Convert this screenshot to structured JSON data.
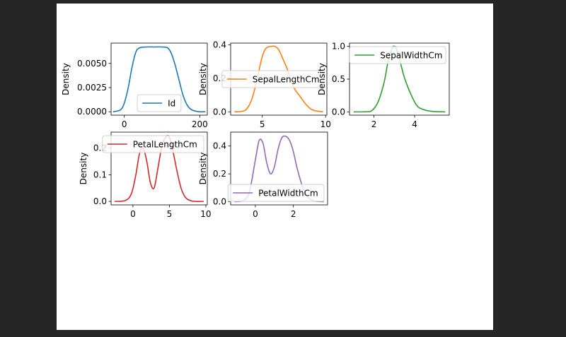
{
  "chart_data": [
    {
      "type": "line",
      "ylabel": "Density",
      "xlim": [
        -35,
        220
      ],
      "ylim": [
        -0.00035,
        0.0071
      ],
      "xticks": [
        {
          "value": 0,
          "label": "0"
        },
        {
          "value": 200,
          "label": "200"
        }
      ],
      "yticks": [
        {
          "value": 0,
          "label": "0.0000"
        },
        {
          "value": 0.0025,
          "label": "0.0025"
        },
        {
          "value": 0.005,
          "label": "0.0050"
        }
      ],
      "legend_loc": "lower-center",
      "series": [
        {
          "name": "Id",
          "color": "#1f77b4",
          "x": [
            -30,
            -10,
            0,
            10,
            20,
            30,
            40,
            60,
            80,
            100,
            115,
            125,
            135,
            145,
            155,
            165,
            175,
            185,
            200,
            215
          ],
          "y": [
            0.0,
            0.0002,
            0.0009,
            0.0024,
            0.0045,
            0.0061,
            0.0066,
            0.0067,
            0.0067,
            0.0067,
            0.0066,
            0.006,
            0.0048,
            0.0033,
            0.0018,
            0.0008,
            0.0003,
            0.0001,
            0.0,
            0.0
          ]
        }
      ]
    },
    {
      "type": "line",
      "ylabel": "Density",
      "xlim": [
        2.5,
        10.1
      ],
      "ylim": [
        -0.02,
        0.41
      ],
      "xticks": [
        {
          "value": 5,
          "label": "5"
        },
        {
          "value": 10,
          "label": "10"
        }
      ],
      "yticks": [
        {
          "value": 0,
          "label": "0.0"
        },
        {
          "value": 0.2,
          "label": "0.2"
        },
        {
          "value": 0.4,
          "label": "0.4"
        }
      ],
      "legend_loc": "center-right",
      "series": [
        {
          "name": "SepalLengthCm",
          "color": "#ff7f0e",
          "x": [
            2.8,
            3.4,
            3.8,
            4.2,
            4.6,
            5.0,
            5.3,
            5.7,
            6.0,
            6.3,
            6.6,
            7.0,
            7.3,
            7.6,
            8.0,
            8.5,
            9.0,
            9.8
          ],
          "y": [
            0.0,
            0.003,
            0.02,
            0.08,
            0.2,
            0.33,
            0.38,
            0.39,
            0.39,
            0.37,
            0.32,
            0.25,
            0.18,
            0.13,
            0.09,
            0.04,
            0.01,
            0.0
          ]
        }
      ]
    },
    {
      "type": "line",
      "ylabel": "Density",
      "xlim": [
        0.8,
        5.7
      ],
      "ylim": [
        -0.05,
        1.05
      ],
      "xticks": [
        {
          "value": 2,
          "label": "2"
        },
        {
          "value": 4,
          "label": "4"
        }
      ],
      "yticks": [
        {
          "value": 0,
          "label": "0.0"
        },
        {
          "value": 0.5,
          "label": "0.5"
        },
        {
          "value": 1,
          "label": "1.0"
        }
      ],
      "legend_loc": "upper-right",
      "series": [
        {
          "name": "SepalWidthCm",
          "color": "#2ca02c",
          "x": [
            1.0,
            1.6,
            1.9,
            2.2,
            2.5,
            2.7,
            2.9,
            3.0,
            3.1,
            3.3,
            3.5,
            3.8,
            4.1,
            4.4,
            4.8,
            5.5
          ],
          "y": [
            0.0,
            0.002,
            0.02,
            0.15,
            0.45,
            0.78,
            0.98,
            1.0,
            0.97,
            0.75,
            0.52,
            0.28,
            0.1,
            0.04,
            0.01,
            0.0
          ]
        }
      ]
    },
    {
      "type": "line",
      "ylabel": "Density",
      "xlim": [
        -3,
        10.2
      ],
      "ylim": [
        -0.013,
        0.26
      ],
      "xticks": [
        {
          "value": 0,
          "label": "0"
        },
        {
          "value": 5,
          "label": "5"
        },
        {
          "value": 10,
          "label": "10"
        }
      ],
      "yticks": [
        {
          "value": 0,
          "label": "0.0"
        },
        {
          "value": 0.1,
          "label": "0.1"
        },
        {
          "value": 0.2,
          "label": "0.2"
        }
      ],
      "legend_loc": "upper-right",
      "series": [
        {
          "name": "PetalLengthCm",
          "color": "#d62728",
          "x": [
            -2.5,
            -1,
            -0.2,
            0.4,
            0.9,
            1.4,
            1.9,
            2.4,
            2.9,
            3.4,
            4.0,
            4.6,
            5.0,
            5.4,
            6.0,
            6.6,
            7.2,
            7.8,
            8.5,
            9.7
          ],
          "y": [
            0.0,
            0.004,
            0.03,
            0.1,
            0.18,
            0.2,
            0.15,
            0.07,
            0.05,
            0.12,
            0.21,
            0.245,
            0.24,
            0.2,
            0.12,
            0.05,
            0.015,
            0.004,
            0.0,
            0.0
          ]
        }
      ]
    },
    {
      "type": "line",
      "ylabel": "Density",
      "xlim": [
        -1.3,
        3.8
      ],
      "ylim": [
        -0.023,
        0.5
      ],
      "xticks": [
        {
          "value": 0,
          "label": "0"
        },
        {
          "value": 2,
          "label": "2"
        }
      ],
      "yticks": [
        {
          "value": 0,
          "label": "0.0"
        },
        {
          "value": 0.2,
          "label": "0.2"
        },
        {
          "value": 0.4,
          "label": "0.4"
        }
      ],
      "legend_loc": "lower-right",
      "series": [
        {
          "name": "PetalWidthCm",
          "color": "#9467bd",
          "x": [
            -1.1,
            -0.6,
            -0.3,
            0.0,
            0.2,
            0.4,
            0.6,
            0.8,
            1.0,
            1.2,
            1.4,
            1.6,
            1.8,
            2.0,
            2.2,
            2.5,
            2.8,
            3.1,
            3.6
          ],
          "y": [
            0.0,
            0.01,
            0.08,
            0.3,
            0.44,
            0.42,
            0.28,
            0.2,
            0.25,
            0.38,
            0.46,
            0.47,
            0.44,
            0.36,
            0.24,
            0.1,
            0.03,
            0.005,
            0.0
          ]
        }
      ]
    }
  ]
}
